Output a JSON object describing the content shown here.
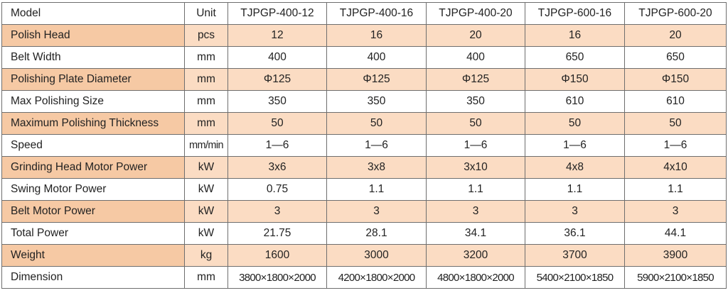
{
  "table": {
    "header": {
      "param": "Model",
      "unit": "Unit",
      "models": [
        "TJPGP-400-12",
        "TJPGP-400-16",
        "TJPGP-400-20",
        "TJPGP-600-16",
        "TJPGP-600-20"
      ]
    },
    "rows": [
      {
        "param": "Polish Head",
        "unit": "pcs",
        "values": [
          "12",
          "16",
          "20",
          "16",
          "20"
        ]
      },
      {
        "param": "Belt Width",
        "unit": "mm",
        "values": [
          "400",
          "400",
          "400",
          "650",
          "650"
        ]
      },
      {
        "param": "Polishing Plate Diameter",
        "unit": "mm",
        "values": [
          "Φ125",
          "Φ125",
          "Φ125",
          "Φ150",
          "Φ150"
        ]
      },
      {
        "param": "Max Polishing Size",
        "unit": "mm",
        "values": [
          "350",
          "350",
          "350",
          "610",
          "610"
        ]
      },
      {
        "param": "Maximum Polishing Thickness",
        "unit": "mm",
        "values": [
          "50",
          "50",
          "50",
          "50",
          "50"
        ]
      },
      {
        "param": "Speed",
        "unit": "mm/min",
        "values": [
          "1—6",
          "1—6",
          "1—6",
          "1—6",
          "1—6"
        ]
      },
      {
        "param": "Grinding Head Motor Power",
        "unit": "kW",
        "values": [
          "3x6",
          "3x8",
          "3x10",
          "4x8",
          "4x10"
        ]
      },
      {
        "param": "Swing Motor Power",
        "unit": "kW",
        "values": [
          "0.75",
          "1.1",
          "1.1",
          "1.1",
          "1.1"
        ]
      },
      {
        "param": "Belt Motor Power",
        "unit": "kW",
        "values": [
          "3",
          "3",
          "3",
          "3",
          "3"
        ]
      },
      {
        "param": "Total Power",
        "unit": "kW",
        "values": [
          "21.75",
          "28.1",
          "34.1",
          "36.1",
          "44.1"
        ]
      },
      {
        "param": "Weight",
        "unit": "kg",
        "values": [
          "1600",
          "3000",
          "3200",
          "3700",
          "3900"
        ]
      },
      {
        "param": "Dimension",
        "unit": "mm",
        "values": [
          "3800×1800×2000",
          "4200×1800×2000",
          "4800×1800×2000",
          "5400×2100×1850",
          "5900×2100×1850"
        ]
      }
    ],
    "colors": {
      "shaded_row": "#fbdcc3",
      "shaded_param": "#f6c9a4",
      "border": "#6e6e6e",
      "text": "#222222"
    }
  }
}
